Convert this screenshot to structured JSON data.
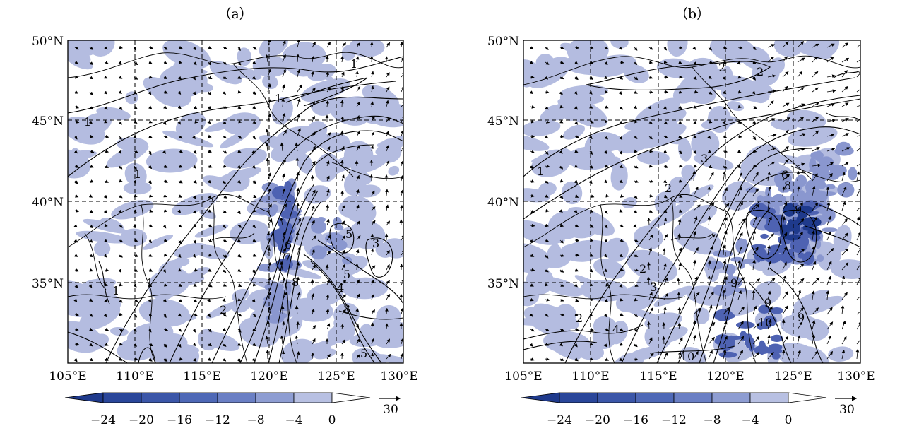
{
  "colors": {
    "shade_light": "#b4bce0",
    "shade_mid": "#8a97cf",
    "shade_dark": "#4e62b2",
    "shade_darkest": "#1f3a8c",
    "contour": "#000000"
  },
  "panels": [
    {
      "label": "（a）",
      "lat_ticks": [
        "50°N",
        "45°N",
        "40°N",
        "35°N"
      ],
      "lon_ticks": [
        "105°E",
        "110°E",
        "115°E",
        "120°E",
        "125°E",
        "130°E"
      ],
      "contour_labels": [
        "1",
        "1",
        "1",
        "1",
        "1",
        "1",
        "2",
        "3",
        "3",
        "4",
        "5",
        "5",
        "5",
        "6",
        "7",
        "8"
      ],
      "colorbar": {
        "ticks": [
          "−24",
          "−20",
          "−16",
          "−12",
          "−8",
          "−4",
          "0"
        ],
        "colors": [
          "#1f3a8c",
          "#2a469a",
          "#3b56a8",
          "#4e68b6",
          "#6a7fc4",
          "#8e9dd2",
          "#b8c0e2",
          "#ffffff"
        ]
      },
      "vector_ref": "30"
    },
    {
      "label": "（b）",
      "lat_ticks": [
        "50°N",
        "45°N",
        "40°N",
        "35°N"
      ],
      "lon_ticks": [
        "105°E",
        "110°E",
        "115°E",
        "120°E",
        "125°E",
        "130°E"
      ],
      "contour_labels": [
        "2",
        "2",
        "1",
        "3",
        "2",
        "2",
        "2",
        "3",
        "4",
        "6",
        "8",
        "9",
        "9",
        "9",
        "9",
        "10",
        "10"
      ],
      "colorbar": {
        "ticks": [
          "−24",
          "−20",
          "−16",
          "−12",
          "−8",
          "−4",
          "0"
        ],
        "colors": [
          "#1f3a8c",
          "#2a469a",
          "#3b56a8",
          "#4e68b6",
          "#6a7fc4",
          "#8e9dd2",
          "#b8c0e2",
          "#ffffff"
        ]
      },
      "vector_ref": "30"
    }
  ]
}
